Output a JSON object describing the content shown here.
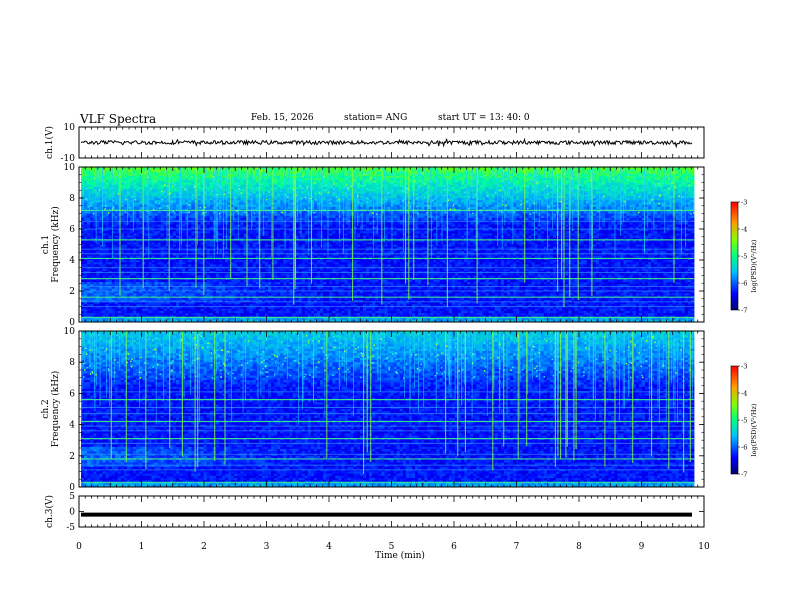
{
  "header": {
    "title": "VLF Spectra",
    "date": "Feb. 15, 2026",
    "station": "station= ANG",
    "start": "start  UT =   13: 40: 0"
  },
  "chart_data": [
    {
      "type": "line",
      "name": "ch1-waveform",
      "ylabel": "ch.1(V)",
      "ylim": [
        -10,
        10
      ],
      "yticks": [
        "10",
        "-10"
      ],
      "xlim": [
        0,
        10
      ],
      "baseline_v": 0,
      "amplitude_v": 1.2
    },
    {
      "type": "heatmap",
      "name": "ch1-spectrogram",
      "ylabel": "ch.1\nFrequency (kHz)",
      "ylim": [
        0,
        10
      ],
      "yticks": [
        "0",
        "2",
        "4",
        "6",
        "8",
        "10"
      ],
      "xlim": [
        0,
        10
      ],
      "colorbar": {
        "label": "log(PSD)(V²/Hz)",
        "ticks": [
          "-3",
          "-4",
          "-5",
          "-6",
          "-7"
        ],
        "range": [
          -7,
          -3
        ]
      }
    },
    {
      "type": "heatmap",
      "name": "ch2-spectrogram",
      "ylabel": "ch.2\nFrequency (kHz)",
      "ylim": [
        0,
        10
      ],
      "yticks": [
        "0",
        "2",
        "4",
        "6",
        "8",
        "10"
      ],
      "xlim": [
        0,
        10
      ],
      "colorbar": {
        "label": "log(PSD)(V²/Hz)",
        "ticks": [
          "-3",
          "-4",
          "-5",
          "-6",
          "-7"
        ],
        "range": [
          -7,
          -3
        ]
      }
    },
    {
      "type": "line",
      "name": "ch3-waveform",
      "ylabel": "ch.3(V)",
      "ylim": [
        -5,
        5
      ],
      "yticks": [
        "5",
        "0",
        "-5"
      ],
      "xlim": [
        0,
        10
      ],
      "xlabel": "Time (min)",
      "xticks": [
        "0",
        "1",
        "2",
        "3",
        "4",
        "5",
        "6",
        "7",
        "8",
        "9",
        "10"
      ],
      "level_v": -1.0
    }
  ],
  "colors": {
    "spectrum_low": "#000060",
    "spectrum_high": "#ff0000",
    "axis": "#000000"
  }
}
